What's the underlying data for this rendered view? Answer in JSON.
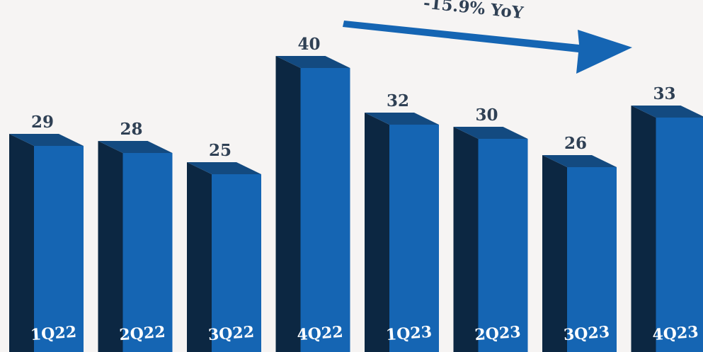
{
  "chart_data": {
    "type": "bar",
    "categories": [
      "1Q22",
      "2Q22",
      "3Q22",
      "4Q22",
      "1Q23",
      "2Q23",
      "3Q23",
      "4Q23"
    ],
    "values": [
      29,
      28,
      25,
      40,
      32,
      30,
      26,
      33
    ],
    "title": "",
    "xlabel": "",
    "ylabel": "",
    "ylim": [
      0,
      40
    ],
    "grid": false,
    "style": "3d-bar",
    "annotation": {
      "text": "-15.9% YoY",
      "shape": "arrow"
    }
  },
  "colors": {
    "background": "#f6f4f3",
    "bar_front": "#1565b3",
    "bar_side": "#0c2742",
    "bar_top": "#134a80",
    "arrow": "#1565b3",
    "value_text": "#2f4054",
    "category_text": "#ffffff"
  }
}
